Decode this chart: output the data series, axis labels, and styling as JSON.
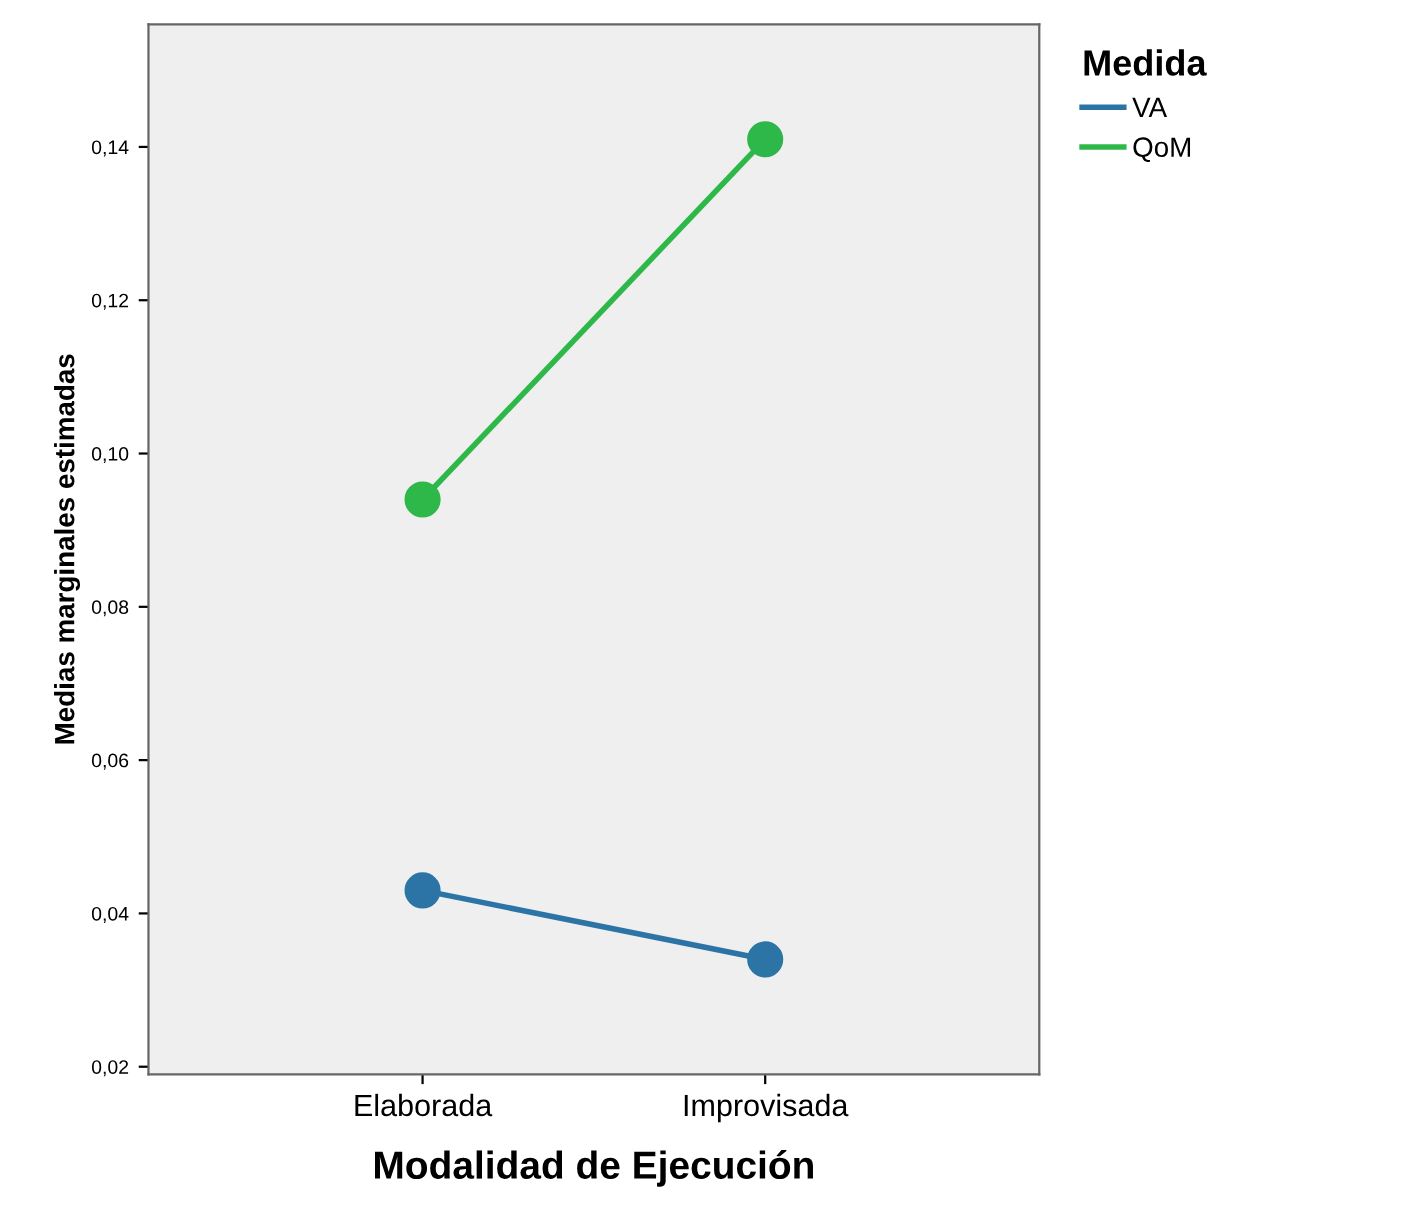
{
  "chart_data": {
    "type": "line",
    "xlabel": "Modalidad de Ejecución",
    "ylabel": "Medias marginales estimadas",
    "legend_title": "Medida",
    "categories": [
      "Elaborada",
      "Improvisada"
    ],
    "series": [
      {
        "name": "VA",
        "color": "#2d74a6",
        "values": [
          0.043,
          0.034
        ]
      },
      {
        "name": "QoM",
        "color": "#2fb84a",
        "values": [
          0.094,
          0.141
        ]
      }
    ],
    "ylim": [
      0.019,
      0.156
    ],
    "yticks": [
      {
        "value": 0.02,
        "label": "0,02"
      },
      {
        "value": 0.04,
        "label": "0,04"
      },
      {
        "value": 0.06,
        "label": "0,06"
      },
      {
        "value": 0.08,
        "label": "0,08"
      },
      {
        "value": 0.1,
        "label": "0,10"
      },
      {
        "value": 0.12,
        "label": "0,12"
      },
      {
        "value": 0.14,
        "label": "0,14"
      }
    ],
    "marker": "circle",
    "line_style": "solid",
    "grid": false,
    "legend": "top right"
  }
}
